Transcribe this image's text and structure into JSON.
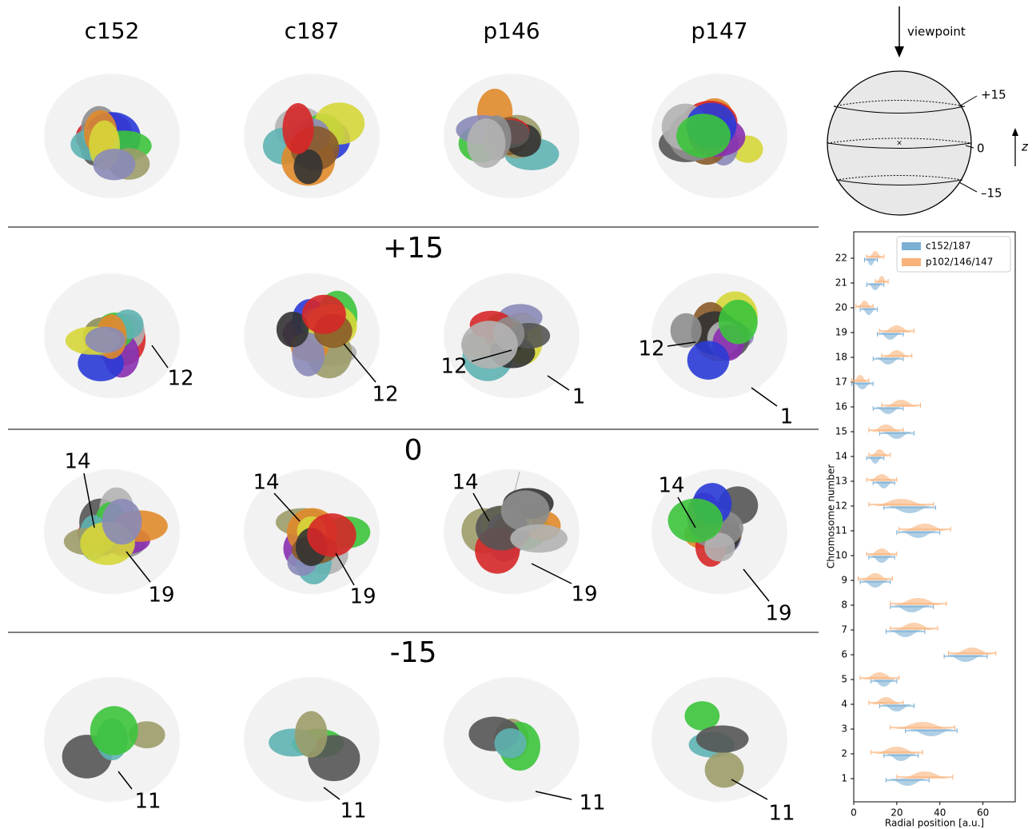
{
  "figure": {
    "columns": [
      "c152",
      "c187",
      "p146",
      "p147"
    ],
    "rows": [
      {
        "label": "+15",
        "annotations": [
          [
            "12"
          ],
          [
            "12"
          ],
          [
            "12",
            "1"
          ],
          [
            "12",
            "1"
          ]
        ]
      },
      {
        "label": "0",
        "annotations": [
          [
            "14",
            "19"
          ],
          [
            "14",
            "19"
          ],
          [
            "14",
            "19"
          ],
          [
            "14",
            "19"
          ]
        ]
      },
      {
        "label": "-15",
        "annotations": [
          [
            "11"
          ],
          [
            "11"
          ],
          [
            "11"
          ],
          [
            "11"
          ]
        ]
      }
    ]
  },
  "schematic": {
    "viewpoint": "viewpoint",
    "levels": [
      "+15",
      "0",
      "–15"
    ],
    "axis": "z"
  },
  "chart_data": {
    "type": "violin",
    "xlabel": "Radial position [a.u.]",
    "ylabel": "Chromosome number",
    "categories": [
      "1",
      "2",
      "3",
      "4",
      "5",
      "6",
      "7",
      "8",
      "9",
      "10",
      "11",
      "12",
      "13",
      "14",
      "15",
      "16",
      "17",
      "18",
      "19",
      "20",
      "21",
      "22"
    ],
    "series": [
      {
        "name": "c152/187",
        "color": "#7bafd4",
        "values": [
          25,
          22,
          36,
          20,
          14,
          52,
          24,
          27,
          10,
          13,
          30,
          26,
          14,
          10,
          20,
          16,
          4,
          16,
          17,
          7,
          10,
          8
        ],
        "errors": [
          10,
          8,
          12,
          8,
          6,
          10,
          9,
          10,
          7,
          6,
          10,
          12,
          5,
          4,
          8,
          7,
          5,
          7,
          6,
          4,
          4,
          3
        ]
      },
      {
        "name": "p102/146/147",
        "color": "#f9b27a",
        "values": [
          33,
          20,
          32,
          15,
          12,
          55,
          28,
          30,
          10,
          13,
          33,
          22,
          13,
          12,
          15,
          22,
          3,
          20,
          20,
          5,
          13,
          10
        ],
        "errors": [
          13,
          12,
          15,
          8,
          9,
          11,
          11,
          13,
          8,
          7,
          12,
          15,
          7,
          5,
          8,
          9,
          4,
          7,
          8,
          4,
          3,
          4
        ]
      }
    ],
    "xlim": [
      0,
      75
    ],
    "xticks": [
      0,
      20,
      40,
      60
    ],
    "legend": "upper right"
  }
}
